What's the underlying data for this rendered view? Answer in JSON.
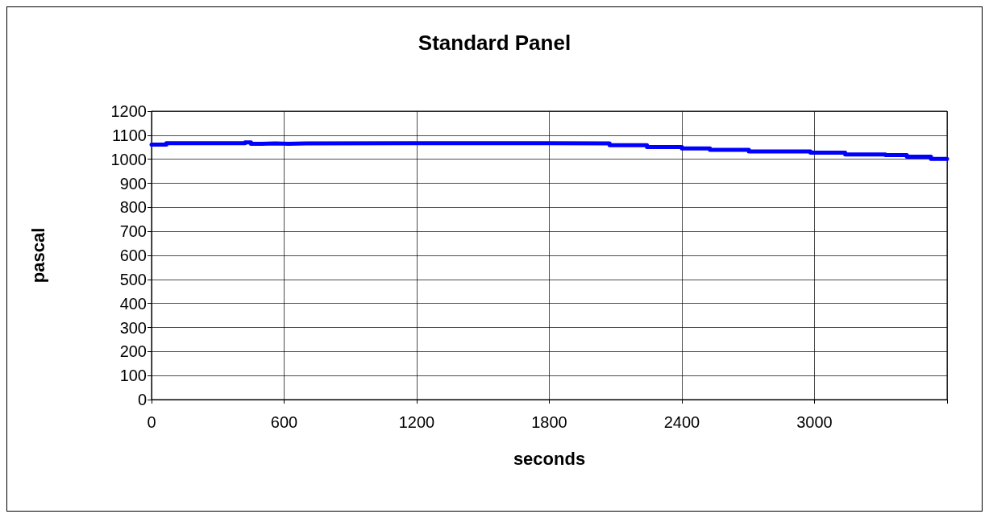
{
  "chart_data": {
    "type": "step",
    "title": "Standard Panel",
    "xlabel": "seconds",
    "ylabel": "pascal",
    "x": [
      0,
      67,
      423,
      450,
      500,
      560,
      620,
      700,
      1793,
      2073,
      2242,
      2400,
      2527,
      2703,
      2982,
      3139,
      3321,
      3418,
      3527,
      3600
    ],
    "series": [
      {
        "color": "#0000ff",
        "values": [
          1061,
          1067,
          1070,
          1064,
          1066,
          1064,
          1066,
          1067,
          1066,
          1058,
          1051,
          1045,
          1039,
          1032,
          1027,
          1020,
          1017,
          1011,
          1001,
          1001
        ]
      }
    ],
    "xlim": [
      0,
      3600
    ],
    "xticks": [
      0,
      600,
      1200,
      1800,
      2400,
      3000,
      {
        "value": 3600,
        "label": null
      }
    ],
    "ylim": [
      0,
      1200
    ],
    "yticks": [
      0,
      100,
      200,
      300,
      400,
      500,
      600,
      700,
      800,
      900,
      1000,
      1100,
      1200
    ],
    "grid": true,
    "marker": "none",
    "line_style": "solid"
  }
}
